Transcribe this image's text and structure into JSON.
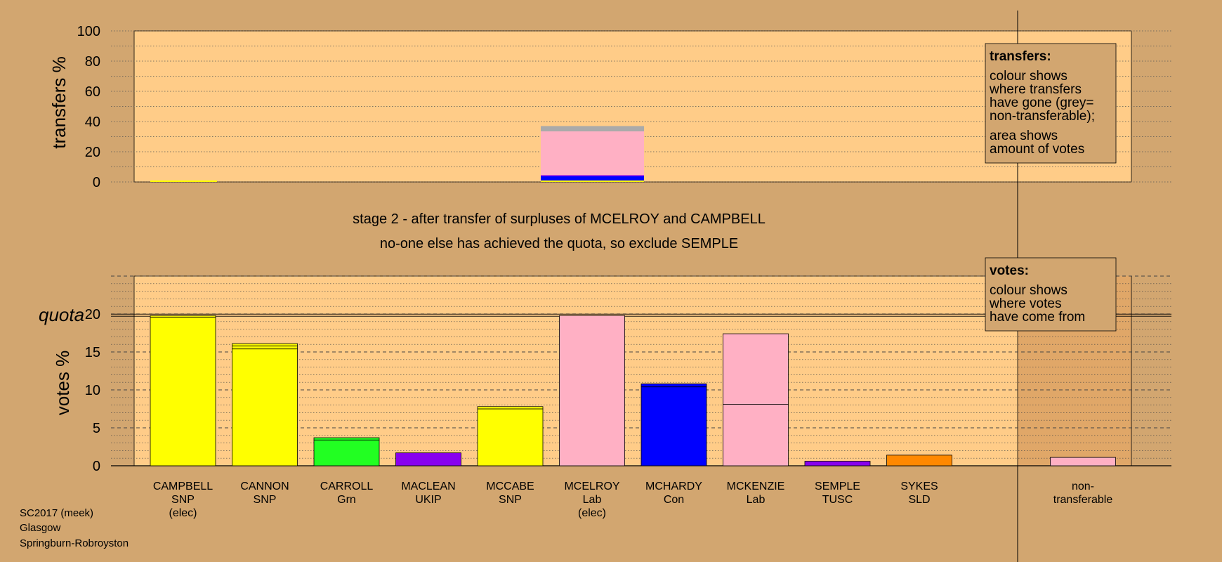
{
  "stage": {
    "line1": "stage 2 - after transfer of surpluses of MCELROY and CAMPBELL",
    "line2": "no-one else has achieved the quota, so exclude SEMPLE"
  },
  "footer": {
    "line1": "SC2017 (meek)",
    "line2": "Glasgow",
    "line3": "Springburn-Robroyston"
  },
  "legends": {
    "transfers": {
      "heading": "transfers:",
      "line1": "colour shows",
      "line2": "where transfers",
      "line3": "have gone (grey=",
      "line4": "non-transferable);",
      "line5": "area shows",
      "line6": "amount of votes"
    },
    "votes": {
      "heading": "votes:",
      "line1": "colour shows",
      "line2": "where votes",
      "line3": "have come from"
    }
  },
  "colors": {
    "background": "#d2a670",
    "plot_bg": "#ffcc88",
    "SNP": "#ffff00",
    "Lab": "#ffb0c4",
    "Con": "#0000ff",
    "Grn": "#22ff22",
    "UKIP": "#8800ee",
    "TUSC": "#8800ee",
    "SLD": "#ff8800",
    "non_transferable": "#aaaaaa"
  },
  "chart_data": [
    {
      "type": "bar",
      "name": "transfers",
      "ylabel": "transfers %",
      "ylim": [
        0,
        100
      ],
      "yticks": [
        0,
        20,
        40,
        60,
        80,
        100
      ],
      "grid": true,
      "columns": [
        {
          "col": 0,
          "segments": [
            {
              "party": "SNP",
              "value": 1.0
            }
          ]
        },
        {
          "col": 5,
          "segments": [
            {
              "party": "SNP",
              "value": 1.0
            },
            {
              "party": "Con",
              "value": 3.0
            },
            {
              "party": "UKIP",
              "value": 0.5
            },
            {
              "party": "Lab",
              "value": 29.0
            },
            {
              "party": "non_transferable",
              "value": 3.5
            }
          ]
        }
      ]
    },
    {
      "type": "bar",
      "name": "votes",
      "ylabel": "votes %",
      "quota_label": "quota",
      "quota": 19.8,
      "ylim": [
        0,
        25
      ],
      "yticks": [
        0,
        5,
        10,
        15,
        20
      ],
      "grid": true,
      "candidates": [
        {
          "name": "CAMPBELL",
          "party": "SNP",
          "note": "(elec)",
          "segments": [
            {
              "party": "SNP",
              "value": 19.6
            },
            {
              "party": "SNP",
              "value": 0.2
            }
          ]
        },
        {
          "name": "CANNON",
          "party": "SNP",
          "note": "",
          "segments": [
            {
              "party": "SNP",
              "value": 15.4
            },
            {
              "party": "SNP",
              "value": 0.4
            },
            {
              "party": "SNP",
              "value": 0.3
            }
          ]
        },
        {
          "name": "CARROLL",
          "party": "Grn",
          "note": "",
          "segments": [
            {
              "party": "Grn",
              "value": 3.4
            },
            {
              "party": "Grn",
              "value": 0.3
            }
          ]
        },
        {
          "name": "MACLEAN",
          "party": "UKIP",
          "note": "",
          "segments": [
            {
              "party": "UKIP",
              "value": 1.7
            }
          ]
        },
        {
          "name": "MCCABE",
          "party": "SNP",
          "note": "",
          "segments": [
            {
              "party": "SNP",
              "value": 7.5
            },
            {
              "party": "SNP",
              "value": 0.3
            }
          ]
        },
        {
          "name": "MCELROY",
          "party": "Lab",
          "note": "(elec)",
          "segments": [
            {
              "party": "Lab",
              "value": 19.8
            }
          ]
        },
        {
          "name": "MCHARDY",
          "party": "Con",
          "note": "",
          "segments": [
            {
              "party": "Con",
              "value": 10.4
            },
            {
              "party": "Con",
              "value": 0.4
            }
          ]
        },
        {
          "name": "MCKENZIE",
          "party": "Lab",
          "note": "",
          "segments": [
            {
              "party": "Lab",
              "value": 8.1
            },
            {
              "party": "Lab",
              "value": 9.3
            }
          ]
        },
        {
          "name": "SEMPLE",
          "party": "TUSC",
          "note": "",
          "segments": [
            {
              "party": "TUSC",
              "value": 0.6
            }
          ]
        },
        {
          "name": "SYKES",
          "party": "SLD",
          "note": "",
          "segments": [
            {
              "party": "SLD",
              "value": 1.4
            }
          ]
        },
        {
          "name": "non-",
          "party": "transferable",
          "note": "",
          "segments": [
            {
              "party": "Lab",
              "value": 1.1
            }
          ]
        }
      ]
    }
  ]
}
